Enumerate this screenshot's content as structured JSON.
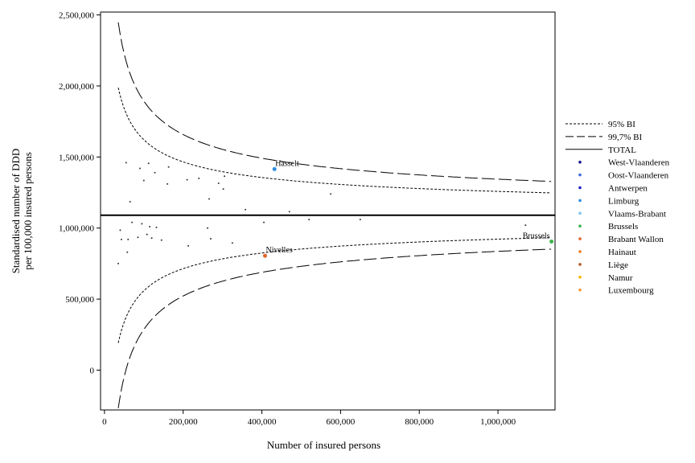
{
  "chart_data": {
    "type": "scatter",
    "xlabel": "Number of insured persons",
    "ylabel_lines": [
      "Standardised number of DDD",
      "per 100,000 insured persons"
    ],
    "xlim": [
      -10000,
      1145000
    ],
    "ylim": [
      -280000,
      2520000
    ],
    "x_ticks": [
      0,
      200000,
      400000,
      600000,
      800000,
      1000000
    ],
    "x_tick_labels": [
      "0",
      "200,000",
      "400,000",
      "600,000",
      "800,000",
      "1,000,000"
    ],
    "y_ticks": [
      0,
      500000,
      1000000,
      1500000,
      2000000,
      2500000
    ],
    "y_tick_labels": [
      "0",
      "500,000",
      "1,000,000",
      "1,500,000",
      "2,000,000",
      "2,500,000"
    ],
    "grid": false,
    "legend_position": "right",
    "total": 1090000,
    "legend": [
      {
        "label": "95% BI",
        "kind": "dotted"
      },
      {
        "label": "99,7% BI",
        "kind": "dashed"
      },
      {
        "label": "TOTAL",
        "kind": "solid"
      },
      {
        "label": "West-Vlaanderen",
        "kind": "dot",
        "color": "#1a1a8c"
      },
      {
        "label": "Oost-Vlaanderen",
        "kind": "dot",
        "color": "#3a6fd8"
      },
      {
        "label": "Antwerpen",
        "kind": "dot",
        "color": "#1f1fc4"
      },
      {
        "label": "Limburg",
        "kind": "dot",
        "color": "#2e8fe0"
      },
      {
        "label": "Vlaams-Brabant",
        "kind": "dot",
        "color": "#7fc2f0"
      },
      {
        "label": "Brussels",
        "kind": "dot",
        "color": "#3cb44b"
      },
      {
        "label": "Brabant Wallon",
        "kind": "dot",
        "color": "#e0672a"
      },
      {
        "label": "Hainaut",
        "kind": "dot",
        "color": "#f07a1e"
      },
      {
        "label": "Liège",
        "kind": "dot",
        "color": "#b5572a"
      },
      {
        "label": "Namur",
        "kind": "dot",
        "color": "#f5b800"
      },
      {
        "label": "Luxembourg",
        "kind": "dot",
        "color": "#f29a3a"
      }
    ],
    "points": [
      [
        35000,
        750000
      ],
      [
        40000,
        985000
      ],
      [
        43000,
        920000
      ],
      [
        55000,
        1460000
      ],
      [
        58000,
        830000
      ],
      [
        60000,
        920000
      ],
      [
        65000,
        1185000
      ],
      [
        70000,
        1040000
      ],
      [
        85000,
        935000
      ],
      [
        90000,
        1420000
      ],
      [
        95000,
        1030000
      ],
      [
        100000,
        1335000
      ],
      [
        108000,
        955000
      ],
      [
        112000,
        1455000
      ],
      [
        115000,
        1010000
      ],
      [
        120000,
        930000
      ],
      [
        128000,
        1390000
      ],
      [
        132000,
        1005000
      ],
      [
        145000,
        915000
      ],
      [
        160000,
        1310000
      ],
      [
        163000,
        1430000
      ],
      [
        210000,
        1340000
      ],
      [
        213000,
        875000
      ],
      [
        240000,
        1350000
      ],
      [
        262000,
        1000000
      ],
      [
        266000,
        1205000
      ],
      [
        270000,
        925000
      ],
      [
        290000,
        1315000
      ],
      [
        302000,
        1275000
      ],
      [
        305000,
        1365000
      ],
      [
        325000,
        895000
      ],
      [
        358000,
        1130000
      ],
      [
        405000,
        1040000
      ],
      [
        470000,
        1115000
      ],
      [
        520000,
        1060000
      ],
      [
        575000,
        1240000
      ],
      [
        650000,
        1060000
      ],
      [
        1070000,
        1020000
      ]
    ],
    "highlighted": [
      {
        "name": "Hasselt",
        "x": 432000,
        "y": 1415000,
        "color": "#2e8fe0"
      },
      {
        "name": "Nivelles",
        "x": 408000,
        "y": 805000,
        "color": "#e0672a"
      },
      {
        "name": "Brussels",
        "x": 1136000,
        "y": 905000,
        "color": "#3cb44b"
      }
    ]
  }
}
